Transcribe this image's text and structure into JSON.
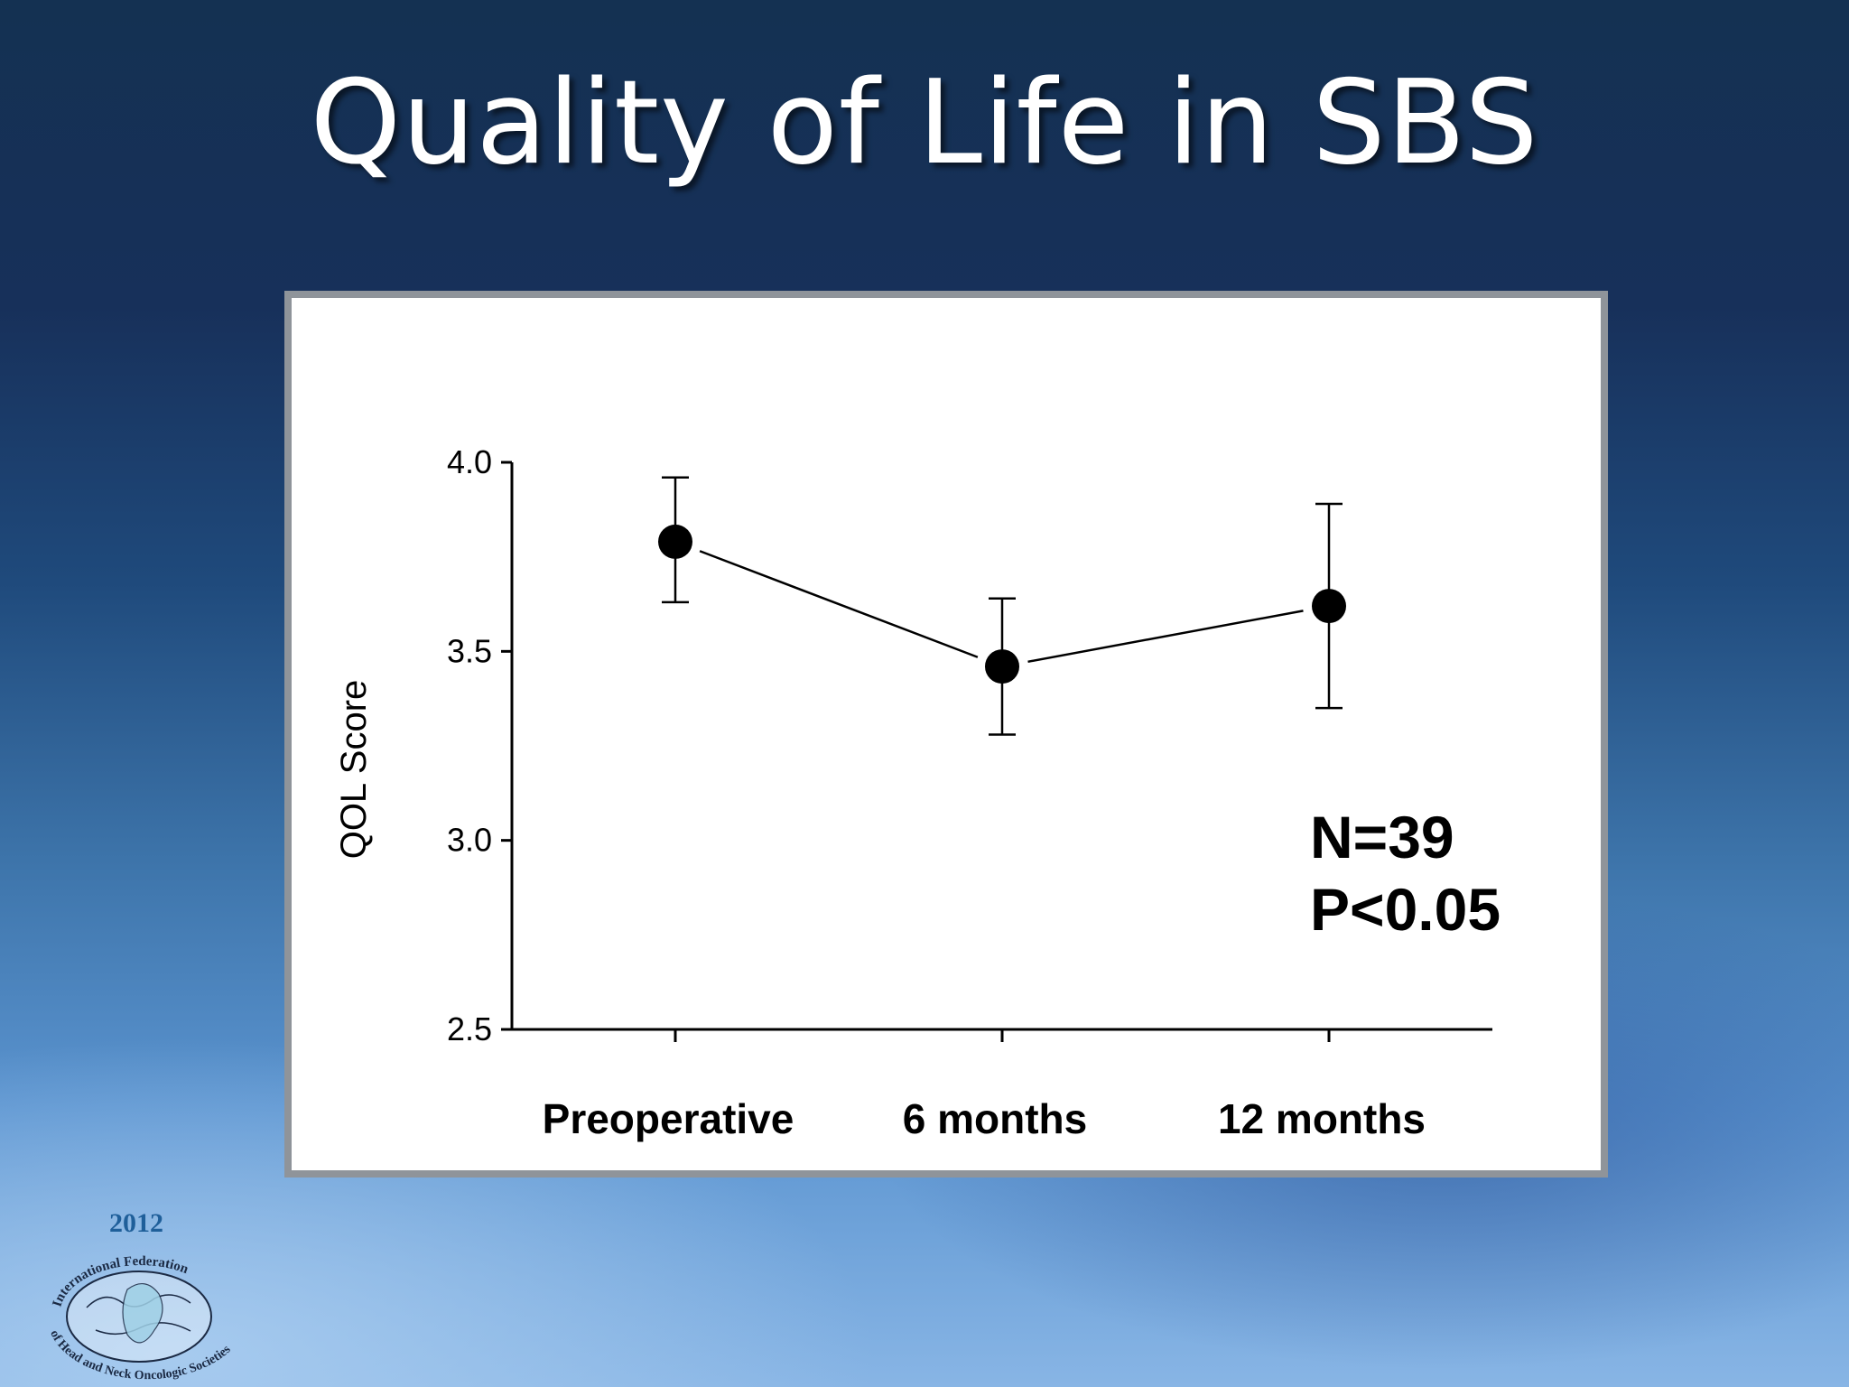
{
  "slide": {
    "title": "Quality of Life in SBS"
  },
  "chart_data": {
    "type": "line",
    "title": "",
    "xlabel": "",
    "ylabel": "QOL Score",
    "ylim": [
      2.5,
      4.0
    ],
    "yticks": [
      "4.0",
      "3.5",
      "3.0",
      "2.5"
    ],
    "ytick_values": [
      4.0,
      3.5,
      3.0,
      2.5
    ],
    "categories": [
      "Preoperative",
      "6 months",
      "12 months"
    ],
    "series": [
      {
        "values": [
          3.79,
          3.46,
          3.62
        ],
        "error_upper": [
          3.96,
          3.64,
          3.89
        ],
        "error_lower": [
          3.63,
          3.28,
          3.35
        ]
      }
    ],
    "grid": false,
    "legend": "none",
    "annotations": [
      "N=39",
      "P<0.05"
    ]
  },
  "logo": {
    "year": "2012",
    "text_top": "International Federation",
    "text_bottom": "of Head and Neck Oncologic Societies"
  },
  "colors": {
    "title": "#ffffff",
    "panel_border": "#8f949a",
    "marks": "#000000"
  }
}
